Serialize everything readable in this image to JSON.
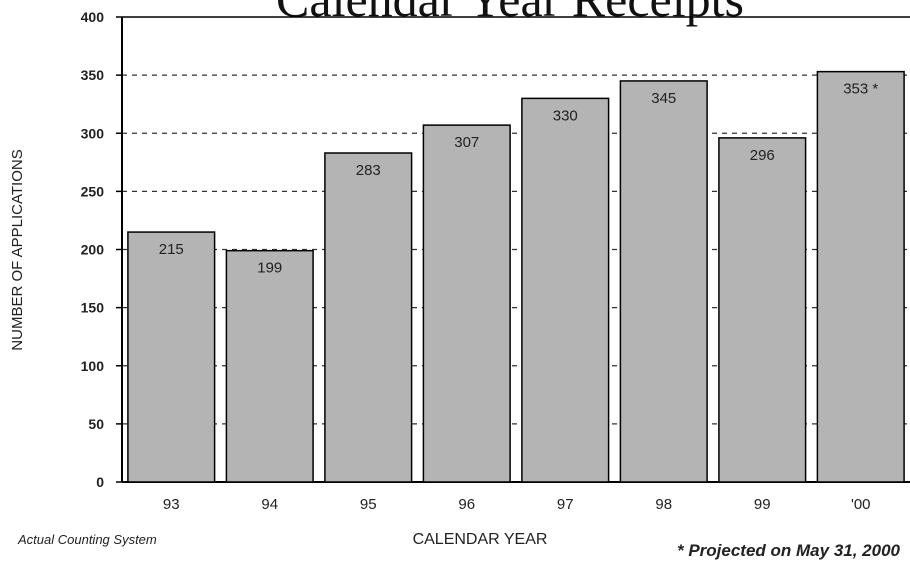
{
  "chart_data": {
    "type": "bar",
    "title": "Calendar Year Receipts",
    "categories": [
      "93",
      "94",
      "95",
      "96",
      "97",
      "98",
      "99",
      "'00"
    ],
    "values": [
      215,
      199,
      283,
      307,
      330,
      345,
      296,
      353
    ],
    "value_labels": [
      "215",
      "199",
      "283",
      "307",
      "330",
      "345",
      "296",
      "353 *"
    ],
    "color": "#b4b4b4",
    "ylim": [
      0,
      400
    ],
    "yticks": [
      0,
      50,
      100,
      150,
      200,
      250,
      300,
      350,
      400
    ],
    "grid": true,
    "ylabel": "NUMBER OF APPLICATIONS",
    "xlabel": "CALENDAR YEAR",
    "annotations": [
      "Actual Counting System",
      "* Projected on May 31, 2000"
    ]
  }
}
